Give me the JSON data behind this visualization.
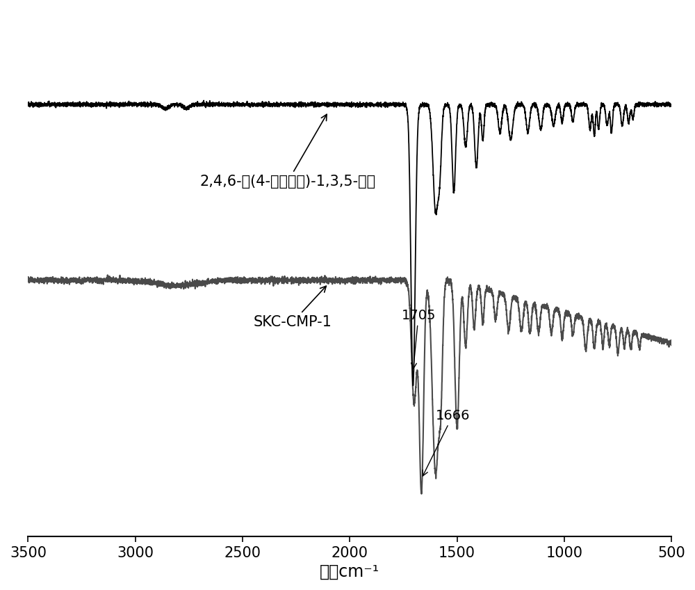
{
  "xlabel": "波数cm⁻¹",
  "xmin": 500,
  "xmax": 3500,
  "background_color": "#ffffff",
  "line1_color": "#000000",
  "line2_color": "#4a4a4a",
  "label1": "2,4,6-三(4-醒基苯基)-1,3,5-三屫",
  "label2": "SKC-CMP-1",
  "annotation1": "1705",
  "annotation2": "1666",
  "label_fontsize": 15,
  "annotation_fontsize": 14,
  "tick_fontsize": 15,
  "xlabel_fontsize": 17
}
